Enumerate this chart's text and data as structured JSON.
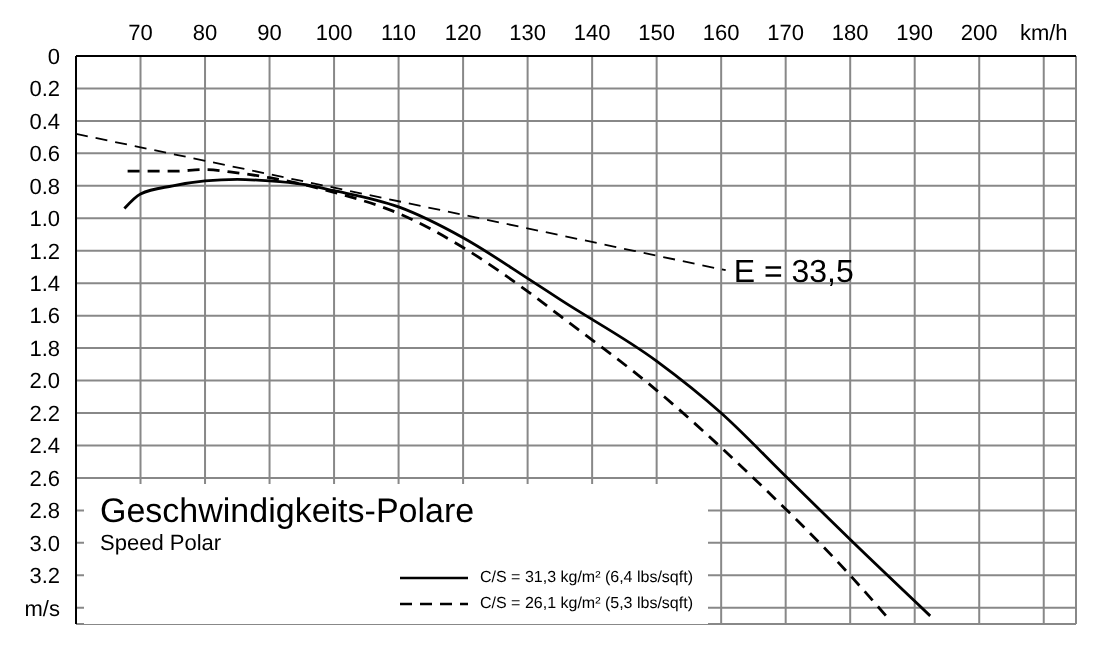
{
  "chart_data": {
    "type": "line",
    "title": "Geschwindigkeits-Polare",
    "subtitle": "Speed Polar",
    "xlim": [
      60,
      215
    ],
    "xticks": [
      70,
      80,
      90,
      100,
      110,
      120,
      130,
      140,
      150,
      160,
      170,
      180,
      190,
      200,
      {
        "value": 210,
        "label": "km/h"
      }
    ],
    "ylim": [
      3.5,
      0
    ],
    "yticks": [
      0,
      0.2,
      0.4,
      0.6,
      0.8,
      {
        "value": 1,
        "label": "1.0"
      },
      1.2,
      1.4,
      1.6,
      1.8,
      {
        "value": 2,
        "label": "2.0"
      },
      2.2,
      2.4,
      2.6,
      2.8,
      {
        "value": 3,
        "label": "3.0"
      },
      3.2,
      {
        "value": 3.4,
        "label": "m/s"
      }
    ],
    "grid": true,
    "legend": "bottom left",
    "marker": "none",
    "annotations": [
      "E = 33,5"
    ],
    "series": [
      {
        "name": "C/S = 31,3 kg/m² (6,4  lbs/sqft)",
        "color": "#000000",
        "line_style": "solid",
        "x": [
          67.5,
          70,
          75,
          80,
          85,
          90,
          95,
          100,
          110,
          120,
          130,
          135,
          150,
          160,
          170,
          180,
          192.4
        ],
        "values": [
          0.94,
          0.85,
          0.8,
          0.77,
          0.76,
          0.77,
          0.79,
          0.83,
          0.93,
          1.12,
          1.37,
          1.5,
          1.88,
          2.2,
          2.59,
          2.98,
          3.45
        ]
      },
      {
        "name": "C/S = 26,1 kg/m² (5,3  lbs/sqft)",
        "color": "#000000",
        "line_style": "dashed",
        "x": [
          68,
          75,
          80,
          85,
          90,
          95,
          100,
          110,
          120,
          130,
          135,
          150,
          165,
          180,
          186
        ],
        "values": [
          0.71,
          0.71,
          0.7,
          0.72,
          0.75,
          0.79,
          0.84,
          0.97,
          1.18,
          1.45,
          1.6,
          2.06,
          2.6,
          3.2,
          3.47
        ]
      },
      {
        "color": "#000000",
        "line_style": "dashed",
        "x": [
          60,
          95,
          160.7
        ],
        "values": [
          0.48,
          0.77,
          1.32
        ]
      }
    ]
  }
}
